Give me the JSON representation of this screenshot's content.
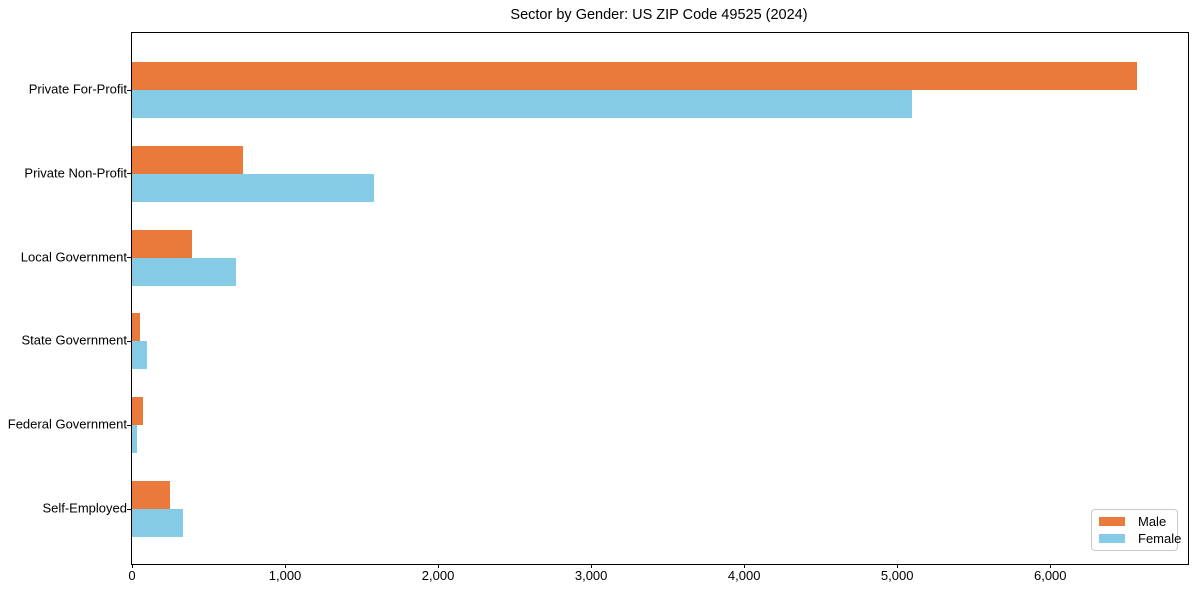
{
  "chart_data": {
    "type": "bar",
    "orientation": "horizontal",
    "title": "Sector by Gender: US ZIP Code 49525 (2024)",
    "categories": [
      "Private For-Profit",
      "Private Non-Profit",
      "Local Government",
      "State Government",
      "Federal Government",
      "Self-Employed"
    ],
    "series": [
      {
        "name": "Male",
        "color": "#ea7a3c",
        "values": [
          6570,
          727,
          393,
          50,
          72,
          248
        ]
      },
      {
        "name": "Female",
        "color": "#86cbe6",
        "values": [
          5094,
          1584,
          681,
          97,
          32,
          333
        ]
      }
    ],
    "xlim": [
      0,
      6900
    ],
    "xticks": [
      0,
      1000,
      2000,
      3000,
      4000,
      5000,
      6000
    ],
    "xtick_labels": [
      "0",
      "1,000",
      "2,000",
      "3,000",
      "4,000",
      "5,000",
      "6,000"
    ],
    "legend": {
      "position": "lower right",
      "entries": [
        "Male",
        "Female"
      ]
    },
    "grid": false,
    "axis_color": "#000000",
    "background_color": "#ffffff"
  }
}
